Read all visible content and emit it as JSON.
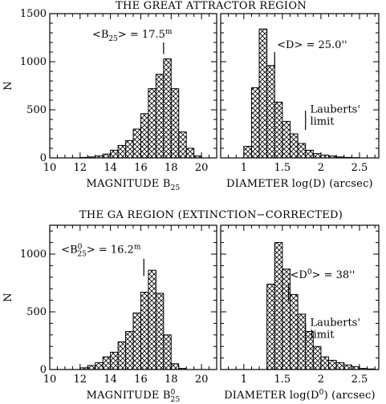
{
  "titles": {
    "top": "THE GREAT ATTRACTOR REGION",
    "bottom": "THE GA REGION (EXTINCTION−CORRECTED)"
  },
  "chart_data": [
    {
      "id": "top-magnitude",
      "type": "bar",
      "ylabel": "N",
      "xlabel": {
        "text": "MAGNITUDE B",
        "sub": "25",
        "sup": ""
      },
      "xlim": [
        10,
        21
      ],
      "ylim": [
        0,
        1500
      ],
      "xticks": [
        10,
        12,
        14,
        16,
        18,
        20
      ],
      "yticks": [
        0,
        500,
        1000,
        1500
      ],
      "x_minor_step": 0.5,
      "y_minor_step": 100,
      "bin_edges": [
        10.0,
        10.5,
        11.0,
        11.5,
        12.0,
        12.5,
        13.0,
        13.5,
        14.0,
        14.5,
        15.0,
        15.5,
        16.0,
        16.5,
        17.0,
        17.5,
        18.0,
        18.5,
        19.0,
        19.5,
        20.0,
        20.5,
        21.0
      ],
      "values": [
        0,
        0,
        0,
        0,
        5,
        10,
        20,
        40,
        80,
        130,
        180,
        300,
        460,
        720,
        870,
        1030,
        720,
        270,
        100,
        20,
        0,
        0
      ],
      "annotations": [
        {
          "text": "<B",
          "sub": "25",
          "sup": "",
          "text2": "> = 17.5",
          "sup2": "m",
          "label_x": 12.8,
          "label_y": 1250,
          "mark_x": 17.5,
          "mark_y_from": 1080,
          "mark_y_to": 1200
        }
      ]
    },
    {
      "id": "top-diameter",
      "type": "bar",
      "ylabel": "",
      "xlabel": {
        "text": "DIAMETER log(D) (arcsec)",
        "sub": "",
        "sup": ""
      },
      "xlim": [
        0.7,
        2.75
      ],
      "ylim": [
        0,
        1500
      ],
      "xticks": [
        1,
        1.5,
        2,
        2.5
      ],
      "yticks": [
        0,
        500,
        1000,
        1500
      ],
      "x_minor_step": 0.1,
      "y_minor_step": 100,
      "bin_edges": [
        1.0,
        1.1,
        1.2,
        1.3,
        1.4,
        1.5,
        1.6,
        1.7,
        1.8,
        1.9,
        2.0,
        2.1,
        2.2,
        2.3,
        2.4,
        2.5,
        2.6
      ],
      "values": [
        120,
        730,
        1340,
        960,
        580,
        380,
        250,
        150,
        80,
        45,
        30,
        20,
        10,
        5,
        3,
        0
      ],
      "annotations": [
        {
          "text": "<D> = 25.0''",
          "label_x": 1.43,
          "label_y": 1140,
          "mark_x": 1.4,
          "mark_y_from": 940,
          "mark_y_to": 1100
        },
        {
          "text": "Lauberts'",
          "text2": "limit",
          "label_x": 1.86,
          "label_y": 470,
          "mark_x": 1.8,
          "mark_y_from": 290,
          "mark_y_to": 490
        }
      ]
    },
    {
      "id": "bottom-magnitude",
      "type": "bar",
      "ylabel": "N",
      "xlabel": {
        "text": "MAGNITUDE B",
        "sub": "25",
        "sup": "0"
      },
      "xlim": [
        10,
        21
      ],
      "ylim": [
        0,
        1250
      ],
      "xticks": [
        10,
        12,
        14,
        16,
        18,
        20
      ],
      "yticks": [
        0,
        500,
        1000
      ],
      "x_minor_step": 0.5,
      "y_minor_step": 100,
      "bin_edges": [
        10.0,
        10.5,
        11.0,
        11.5,
        12.0,
        12.5,
        13.0,
        13.5,
        14.0,
        14.5,
        15.0,
        15.5,
        16.0,
        16.5,
        17.0,
        17.5,
        18.0,
        18.5,
        19.0,
        19.5,
        20.0,
        20.5,
        21.0
      ],
      "values": [
        0,
        0,
        0,
        0,
        15,
        35,
        60,
        110,
        150,
        240,
        330,
        490,
        670,
        860,
        660,
        300,
        50,
        10,
        0,
        0,
        0,
        0
      ],
      "annotations": [
        {
          "text": "<B",
          "sub": "25",
          "sup": "0",
          "text2": "> = 16.2",
          "sup2": "m",
          "label_x": 10.75,
          "label_y": 1010,
          "mark_x": 16.2,
          "mark_y_from": 810,
          "mark_y_to": 960
        }
      ]
    },
    {
      "id": "bottom-diameter",
      "type": "bar",
      "ylabel": "",
      "xlabel": {
        "text": "DIAMETER log(D",
        "sup": "0",
        "text2": ") (arcsec)"
      },
      "xlim": [
        0.7,
        2.75
      ],
      "ylim": [
        0,
        1250
      ],
      "xticks": [
        1,
        1.5,
        2,
        2.5
      ],
      "yticks": [
        0,
        500,
        1000
      ],
      "x_minor_step": 0.1,
      "y_minor_step": 100,
      "bin_edges": [
        1.3,
        1.4,
        1.5,
        1.6,
        1.7,
        1.8,
        1.9,
        2.0,
        2.1,
        2.2,
        2.3,
        2.4,
        2.5,
        2.6,
        2.7
      ],
      "values": [
        740,
        1100,
        870,
        650,
        480,
        330,
        200,
        110,
        80,
        60,
        40,
        25,
        10,
        5
      ],
      "annotations": [
        {
          "text": "<D",
          "sup": "0",
          "text2": "> = 38''",
          "label_x": 1.6,
          "label_y": 790,
          "mark_x": 1.58,
          "mark_y_from": 590,
          "mark_y_to": 740
        },
        {
          "text": "Lauberts'",
          "text2": "limit",
          "label_x": 1.86,
          "label_y": 380,
          "mark_x": 1.8,
          "mark_y_from": 230,
          "mark_y_to": 400
        }
      ]
    }
  ]
}
